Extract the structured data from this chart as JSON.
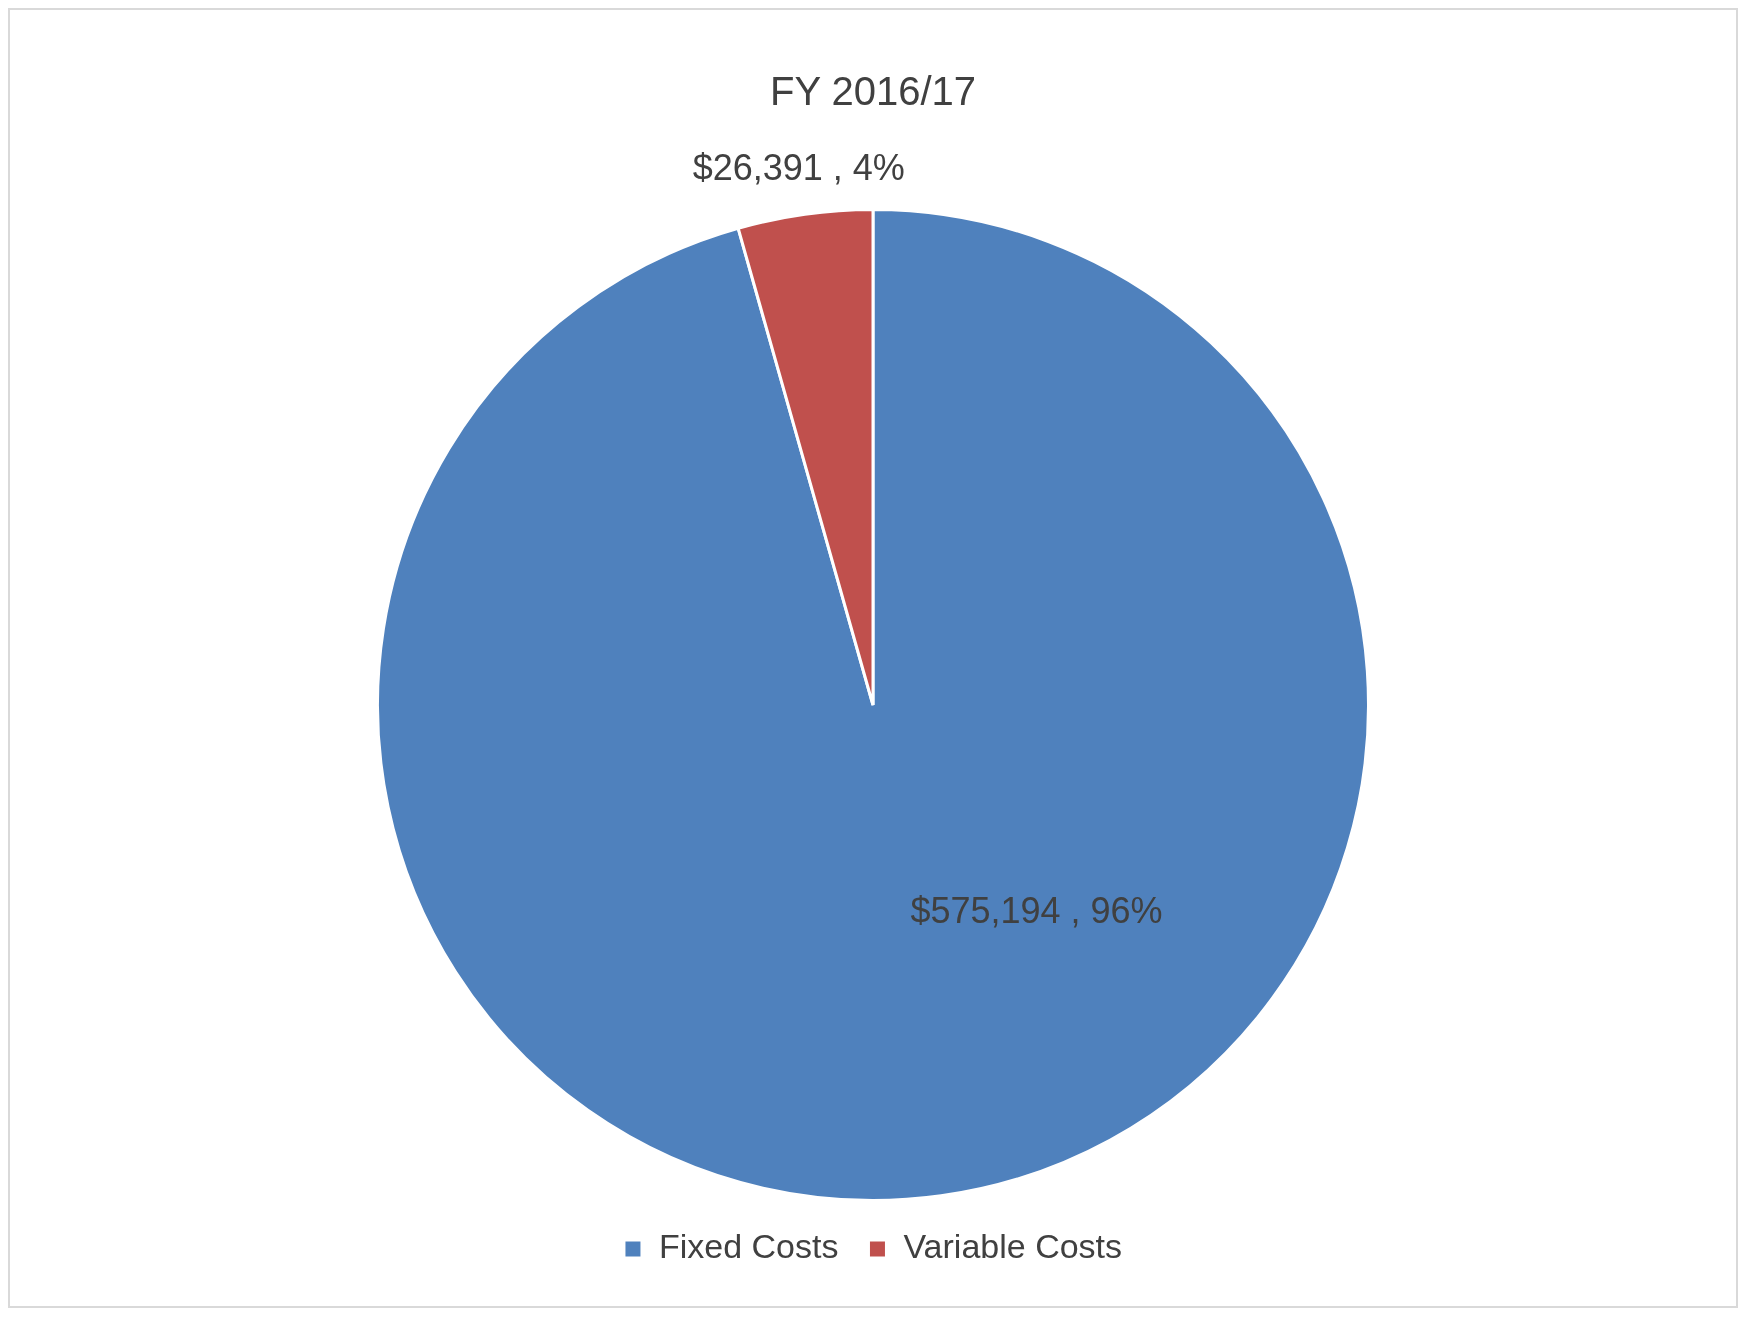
{
  "chart_data": {
    "type": "pie",
    "title": "FY 2016/17",
    "categories": [
      "Fixed Costs",
      "Variable Costs"
    ],
    "values": [
      575194,
      26391
    ],
    "colors": [
      "#4f81bd",
      "#c0504d"
    ],
    "value_labels": [
      "$575,194 , 96%",
      "$26,391 , 4%"
    ],
    "legend": "bottom"
  }
}
